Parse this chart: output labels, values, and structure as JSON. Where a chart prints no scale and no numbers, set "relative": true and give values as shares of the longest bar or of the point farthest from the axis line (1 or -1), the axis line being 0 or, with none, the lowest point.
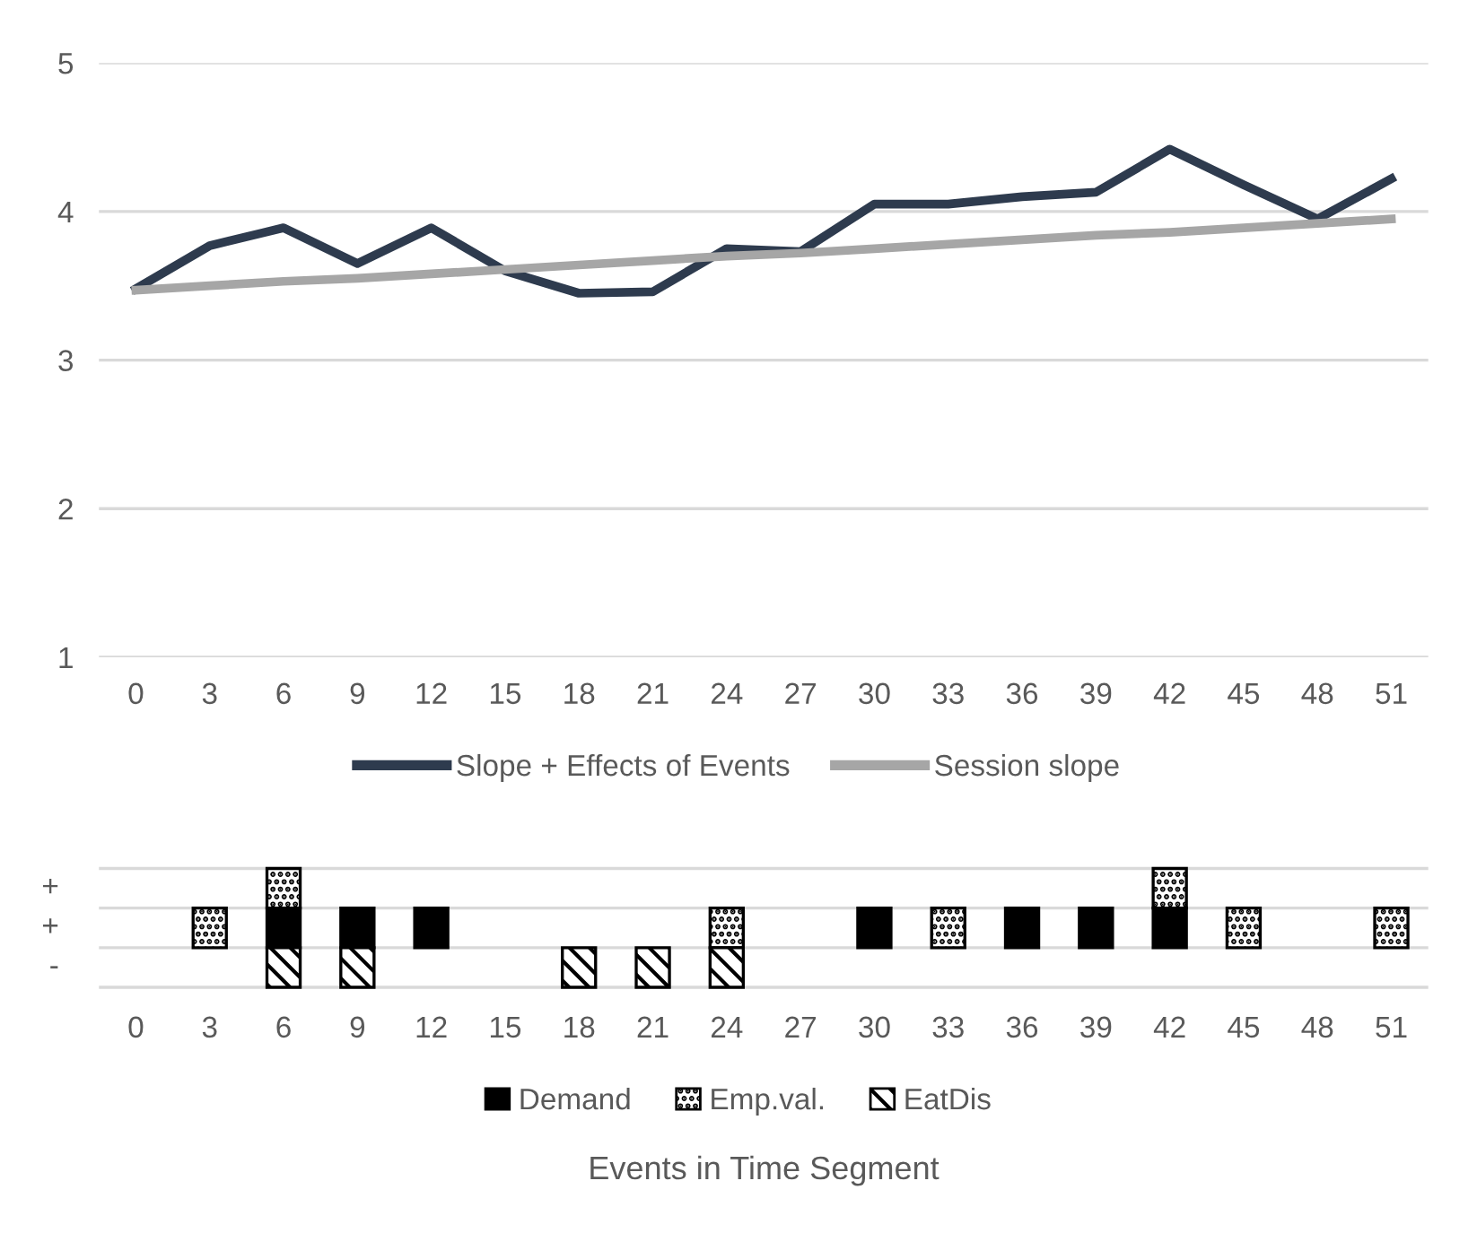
{
  "chart_data": [
    {
      "type": "line",
      "categories": [
        "0",
        "3",
        "6",
        "9",
        "12",
        "15",
        "18",
        "21",
        "24",
        "27",
        "30",
        "33",
        "36",
        "39",
        "42",
        "45",
        "48",
        "51"
      ],
      "ylim": [
        1,
        5
      ],
      "yticks": [
        1,
        2,
        3,
        4,
        5
      ],
      "grid": "y",
      "legend": "bottom",
      "marker": "none",
      "line_style": "solid",
      "series": [
        {
          "name": "Slope + Effects of Events",
          "color": "#2e3b4e",
          "values": [
            3.48,
            3.77,
            3.89,
            3.65,
            3.89,
            3.6,
            3.45,
            3.46,
            3.75,
            3.73,
            4.05,
            4.05,
            4.1,
            4.13,
            4.42,
            4.18,
            3.95,
            4.22
          ]
        },
        {
          "name": "Session slope",
          "color": "#a6a6a6",
          "values": [
            3.47,
            3.5,
            3.53,
            3.55,
            3.58,
            3.61,
            3.64,
            3.67,
            3.7,
            3.72,
            3.75,
            3.78,
            3.81,
            3.84,
            3.86,
            3.89,
            3.92,
            3.95
          ]
        }
      ]
    },
    {
      "type": "bar",
      "relative": true,
      "stacked": true,
      "categories": [
        "0",
        "3",
        "6",
        "9",
        "12",
        "15",
        "18",
        "21",
        "24",
        "27",
        "30",
        "33",
        "36",
        "39",
        "42",
        "45",
        "48",
        "51"
      ],
      "ref_lines": [
        {
          "axis": "y",
          "value": 1,
          "color": "#d9d9d9"
        },
        {
          "axis": "y",
          "value": 0.5,
          "color": "#d9d9d9"
        },
        {
          "axis": "y",
          "value": -0.5,
          "color": "#d9d9d9"
        }
      ],
      "legend": "bottom",
      "xlabel": "Events in Time Segment",
      "annotations": [
        "+",
        "+",
        "-"
      ],
      "series": [
        {
          "type": "bar",
          "name": "Demand",
          "color": "#000000",
          "values": [
            null,
            null,
            0.5,
            0.5,
            0.5,
            null,
            null,
            null,
            null,
            null,
            0.5,
            null,
            0.5,
            0.5,
            0.5,
            null,
            null,
            null
          ]
        },
        {
          "type": "bar",
          "name": "Emp.val.",
          "color": "#000000",
          "values": [
            null,
            0.5,
            0.5,
            null,
            null,
            null,
            null,
            null,
            0.5,
            null,
            null,
            0.5,
            null,
            null,
            0.5,
            0.5,
            null,
            0.5
          ]
        },
        {
          "type": "bar",
          "name": "EatDis",
          "color": "#000000",
          "values": [
            null,
            null,
            -0.5,
            -0.5,
            null,
            null,
            -0.5,
            -0.5,
            -0.5,
            null,
            null,
            null,
            null,
            null,
            null,
            null,
            null,
            null
          ]
        }
      ]
    }
  ]
}
